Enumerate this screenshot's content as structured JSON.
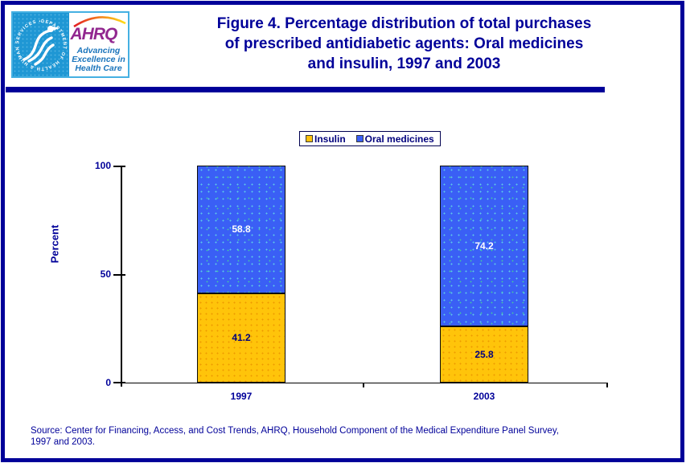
{
  "header": {
    "logo": {
      "hhs_circle_text": "DEPARTMENT OF HEALTH & HUMAN SERVICES • USA",
      "ahrq_acronym": "AHRQ",
      "tagline_lines": [
        "Advancing",
        "Excellence in",
        "Health Care"
      ]
    },
    "title_lines": [
      "Figure 4. Percentage distribution of total purchases",
      "of prescribed antidiabetic agents: Oral medicines",
      "and insulin, 1997 and 2003"
    ]
  },
  "chart_data": {
    "type": "bar",
    "stacked": true,
    "categories": [
      "1997",
      "2003"
    ],
    "series": [
      {
        "name": "Insulin",
        "color": "#FFC20E",
        "values": [
          41.2,
          25.8
        ]
      },
      {
        "name": "Oral medicines",
        "color": "#3A5FF5",
        "values": [
          58.8,
          74.2
        ]
      }
    ],
    "title": "Percentage distribution of total purchases of prescribed antidiabetic agents: Oral medicines and insulin, 1997 and 2003",
    "xlabel": "",
    "ylabel": "Percent",
    "ylim": [
      0,
      100
    ],
    "yticks": [
      0,
      50,
      100
    ],
    "y_tick_labels_top_to_bottom": [
      "100",
      "50",
      "0"
    ],
    "legend_position": "top-center",
    "grid": false,
    "bar_label_colors": {
      "Insulin": "#00007D",
      "Oral medicines": "#FFFFFF"
    }
  },
  "colors": {
    "accent_navy": "#000099",
    "insulin_yellow": "#FFC20E",
    "oral_blue": "#3A5FF5",
    "logo_blue": "#1F97D4",
    "ahrq_purple": "#92278F",
    "tagline_blue": "#1B75BC"
  },
  "source_lines": [
    "Source: Center for Financing, Access, and Cost Trends, AHRQ, Household Component of the Medical Expenditure Panel Survey,",
    "1997 and 2003."
  ]
}
